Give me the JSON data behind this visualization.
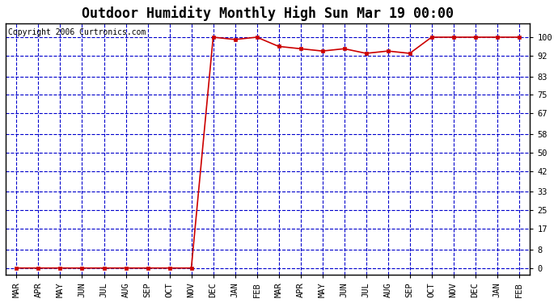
{
  "title": "Outdoor Humidity Monthly High Sun Mar 19 00:00",
  "copyright": "Copyright 2006 Curtronics.com",
  "x_labels": [
    "MAR",
    "APR",
    "MAY",
    "JUN",
    "JUL",
    "AUG",
    "SEP",
    "OCT",
    "NOV",
    "DEC",
    "JAN",
    "FEB",
    "MAR",
    "APR",
    "MAY",
    "JUN",
    "JUL",
    "AUG",
    "SEP",
    "OCT",
    "NOV",
    "DEC",
    "JAN",
    "FEB"
  ],
  "y_values": [
    0,
    0,
    0,
    0,
    0,
    0,
    0,
    0,
    0,
    100,
    99,
    100,
    96,
    95,
    94,
    95,
    93,
    94,
    93,
    100,
    100,
    100,
    100,
    100
  ],
  "yticks": [
    0,
    8,
    17,
    25,
    33,
    42,
    50,
    58,
    67,
    75,
    83,
    92,
    100
  ],
  "ylim": [
    -3,
    106
  ],
  "xlim": [
    -0.5,
    23.5
  ],
  "bg_color": "#ffffff",
  "plot_bg_color": "#ffffff",
  "grid_color": "#0000cc",
  "line_color": "#cc0000",
  "marker_color": "#cc0000",
  "title_fontsize": 12,
  "copyright_fontsize": 7,
  "tick_label_fontsize": 7.5
}
